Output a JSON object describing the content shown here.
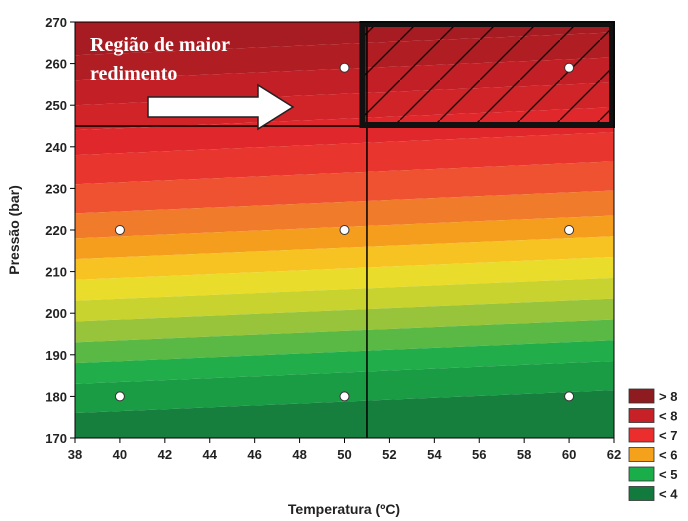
{
  "chart_data": {
    "type": "heatmap",
    "xlabel": "Temperatura (ºC)",
    "ylabel": "Pressão (bar)",
    "xlim": [
      38,
      62
    ],
    "ylim": [
      170,
      270
    ],
    "x_ticks": [
      38,
      40,
      42,
      44,
      46,
      48,
      50,
      52,
      54,
      56,
      58,
      60,
      62
    ],
    "y_ticks": [
      170,
      180,
      190,
      200,
      210,
      220,
      230,
      240,
      250,
      260,
      270
    ],
    "points": [
      {
        "x": 50,
        "y": 259
      },
      {
        "x": 60,
        "y": 259
      },
      {
        "x": 40,
        "y": 220
      },
      {
        "x": 50,
        "y": 220
      },
      {
        "x": 60,
        "y": 220
      },
      {
        "x": 40,
        "y": 180
      },
      {
        "x": 50,
        "y": 180
      },
      {
        "x": 60,
        "y": 180
      }
    ],
    "legend": [
      {
        "label": "> 8",
        "color": "#8e1b1f"
      },
      {
        "label": "< 8",
        "color": "#c72127"
      },
      {
        "label": "< 7",
        "color": "#ec2d2d"
      },
      {
        "label": "< 6",
        "color": "#f4a11c"
      },
      {
        "label": "< 5",
        "color": "#1aae4a"
      },
      {
        "label": "< 4",
        "color": "#117a3c"
      }
    ],
    "annotation": {
      "text_line1": "Região de maior",
      "text_line2": "redimento"
    },
    "highlight_region": {
      "x": [
        50.8,
        62
      ],
      "y": [
        245,
        270
      ]
    },
    "divider_x": 51,
    "divider_y": 245
  }
}
